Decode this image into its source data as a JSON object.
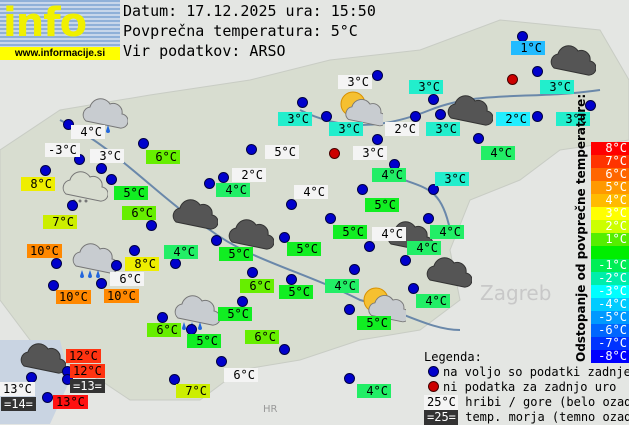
{
  "logo": {
    "word": "info",
    "url": "www.informacije.si"
  },
  "header": {
    "date_line": "Datum: 17.12.2025 ura: 15:50",
    "avg_line": "Povprečna temperatura: 5°C",
    "source_line": "Vir podatkov: ARSO"
  },
  "colors": {
    "white": "#f4f4f4",
    "teal": "#22eecc",
    "cyan": "#22eeff",
    "blue": "#22bbff",
    "green": "#22ee66",
    "brightgreen": "#11ee22",
    "lime": "#66ee00",
    "yellowlime": "#ccee00",
    "yellow": "#eeee00",
    "orange": "#ff8800",
    "redorange": "#ff3311",
    "red": "#ff1111",
    "dark": "#333333"
  },
  "labels": [
    {
      "t": "1°C",
      "c": "blue"
    },
    {
      "t": "3°C",
      "c": "white"
    },
    {
      "t": "3°C",
      "c": "teal"
    },
    {
      "t": "3°C",
      "c": "teal"
    },
    {
      "t": "3°C",
      "c": "teal"
    },
    {
      "t": "3°C",
      "c": "teal"
    },
    {
      "t": "2°C",
      "c": "white"
    },
    {
      "t": "3°C",
      "c": "teal"
    },
    {
      "t": "2°C",
      "c": "cyan"
    },
    {
      "t": "3°C",
      "c": "teal"
    },
    {
      "t": "3°C",
      "c": "white"
    },
    {
      "t": "4°C",
      "c": "green"
    },
    {
      "t": "4°C",
      "c": "green"
    },
    {
      "t": "3°C",
      "c": "teal"
    },
    {
      "t": "4°C",
      "c": "white"
    },
    {
      "t": "-3°C",
      "c": "white"
    },
    {
      "t": "3°C",
      "c": "white"
    },
    {
      "t": "6°C",
      "c": "lime"
    },
    {
      "t": "5°C",
      "c": "white"
    },
    {
      "t": "8°C",
      "c": "yellow"
    },
    {
      "t": "5°C",
      "c": "brightgreen"
    },
    {
      "t": "2°C",
      "c": "white"
    },
    {
      "t": "4°C",
      "c": "green"
    },
    {
      "t": "4°C",
      "c": "white"
    },
    {
      "t": "6°C",
      "c": "lime"
    },
    {
      "t": "7°C",
      "c": "yellowlime"
    },
    {
      "t": "5°C",
      "c": "brightgreen"
    },
    {
      "t": "5°C",
      "c": "brightgreen"
    },
    {
      "t": "5°C",
      "c": "brightgreen"
    },
    {
      "t": "4°C",
      "c": "white"
    },
    {
      "t": "4°C",
      "c": "green"
    },
    {
      "t": "4°C",
      "c": "green"
    },
    {
      "t": "4°C",
      "c": "green"
    },
    {
      "t": "5°C",
      "c": "brightgreen"
    },
    {
      "t": "10°C",
      "c": "orange"
    },
    {
      "t": "8°C",
      "c": "yellow"
    },
    {
      "t": "6°C",
      "c": "white"
    },
    {
      "t": "10°C",
      "c": "orange"
    },
    {
      "t": "10°C",
      "c": "orange"
    },
    {
      "t": "6°C",
      "c": "lime"
    },
    {
      "t": "5°C",
      "c": "brightgreen"
    },
    {
      "t": "4°C",
      "c": "green"
    },
    {
      "t": "4°C",
      "c": "green"
    },
    {
      "t": "5°C",
      "c": "brightgreen"
    },
    {
      "t": "5°C",
      "c": "brightgreen"
    },
    {
      "t": "6°C",
      "c": "lime"
    },
    {
      "t": "5°C",
      "c": "brightgreen"
    },
    {
      "t": "6°C",
      "c": "lime"
    },
    {
      "t": "6°C",
      "c": "white"
    },
    {
      "t": "7°C",
      "c": "yellowlime"
    },
    {
      "t": "4°C",
      "c": "green"
    },
    {
      "t": "12°C",
      "c": "redorange"
    },
    {
      "t": "12°C",
      "c": "redorange"
    },
    {
      "t": "=13=",
      "c": "dark"
    },
    {
      "t": "13°C",
      "c": "white"
    },
    {
      "t": "=14=",
      "c": "dark"
    },
    {
      "t": "13°C",
      "c": "red"
    }
  ],
  "weather_icons": [
    "cloud-rain",
    "partly-sunny",
    "dark-cloud",
    "dark-cloud",
    "cloud-drizzle",
    "dark-cloud",
    "dark-cloud",
    "dark-cloud",
    "cloud-rain",
    "dark-cloud",
    "partly-sunny",
    "cloud-rain",
    "dark-cloud"
  ],
  "scale": {
    "title": "Odstopanje od povprečne temperature:",
    "steps": [
      {
        "t": "8°C",
        "c": "#ff0000"
      },
      {
        "t": "7°C",
        "c": "#ff3300"
      },
      {
        "t": "6°C",
        "c": "#ff6600"
      },
      {
        "t": "5°C",
        "c": "#ff9900"
      },
      {
        "t": "4°C",
        "c": "#ffbb00"
      },
      {
        "t": "3°C",
        "c": "#ffff00"
      },
      {
        "t": "2°C",
        "c": "#ccff00"
      },
      {
        "t": "1°C",
        "c": "#55ee00"
      },
      {
        "t": "",
        "c": "#00ee00"
      },
      {
        "t": "-1°C",
        "c": "#00ee55"
      },
      {
        "t": "-2°C",
        "c": "#00eeaa"
      },
      {
        "t": "-3°C",
        "c": "#00ffff"
      },
      {
        "t": "-4°C",
        "c": "#00ccff"
      },
      {
        "t": "-5°C",
        "c": "#0099ff"
      },
      {
        "t": "-6°C",
        "c": "#0066ff"
      },
      {
        "t": "-7°C",
        "c": "#0033ff"
      },
      {
        "t": "-8°C",
        "c": "#0000ff"
      }
    ]
  },
  "legend": {
    "title": "Legenda:",
    "available": "na voljo so podatki zadnje ure",
    "missing": "ni podatka za zadnjo uro",
    "mountain_sample": "25°C",
    "mountain_text": "hribi / gore (belo ozadje)",
    "sea_sample": "=25=",
    "sea_text": "temp. morja (temno ozadje)"
  },
  "map_text": {
    "zagreb": "Zagreb",
    "hr": "HR"
  }
}
